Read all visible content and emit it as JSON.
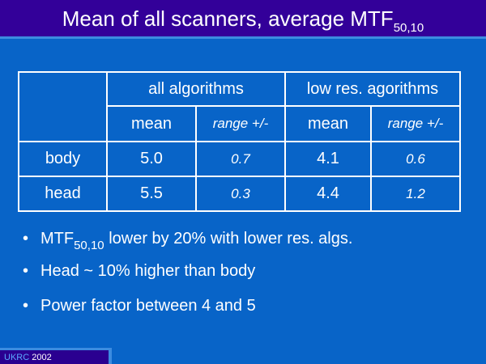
{
  "title": {
    "text": "Mean of all scanners, average MTF",
    "subscript": "50,10"
  },
  "table": {
    "groups": [
      "all algorithms",
      "low res. agorithms"
    ],
    "columns": [
      "mean",
      "range +/-",
      "mean",
      "range +/-"
    ],
    "rows": [
      [
        "body",
        "5.0",
        "0.7",
        "4.1",
        "0.6"
      ],
      [
        "head",
        "5.5",
        "0.3",
        "4.4",
        "1.2"
      ]
    ]
  },
  "bullets": [
    {
      "text": "MTF",
      "subscript": "50,10",
      "rest": " lower by 20% with lower res. algs."
    },
    {
      "text": "Head ~ 10% higher than body"
    },
    {
      "text": "Power factor between 4 and 5"
    }
  ],
  "footer": {
    "org": "UKRC",
    "year": "2002"
  }
}
